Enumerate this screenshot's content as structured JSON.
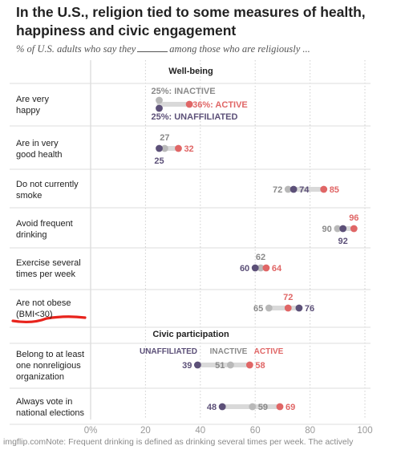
{
  "chart_data": {
    "type": "dot",
    "title": "In the U.S., religion tied to some measures of health, happiness and civic engagement",
    "subtitle_before": "% of U.S. adults who say they",
    "subtitle_after": "among those who are religiously ...",
    "xlim": [
      0,
      100
    ],
    "x_ticks": [
      {
        "value": 0,
        "label": "0%"
      },
      {
        "value": 20,
        "label": "20"
      },
      {
        "value": 40,
        "label": "40"
      },
      {
        "value": 60,
        "label": "60"
      },
      {
        "value": 80,
        "label": "80"
      },
      {
        "value": 100,
        "label": "100"
      }
    ],
    "series": [
      {
        "name": "UNAFFILIATED",
        "color": "#5c5078"
      },
      {
        "name": "INACTIVE",
        "color": "#b9b9b9"
      },
      {
        "name": "ACTIVE",
        "color": "#e06666"
      }
    ],
    "sections": [
      {
        "label": "Well-being",
        "rows": [
          {
            "label": "Are very happy",
            "values": [
              25,
              25,
              36
            ],
            "value_labels": [
              "25%: UNAFFILIATED",
              "25%: INACTIVE",
              "36%: ACTIVE"
            ]
          },
          {
            "label": "Are in very good health",
            "values": [
              25,
              27,
              32
            ],
            "value_labels": [
              "25",
              "27",
              "32"
            ]
          },
          {
            "label": "Do not currently smoke",
            "values": [
              74,
              72,
              85
            ],
            "value_labels": [
              "74",
              "72",
              "85"
            ]
          },
          {
            "label": "Avoid frequent drinking",
            "values": [
              92,
              90,
              96
            ],
            "value_labels": [
              "92",
              "90",
              "96"
            ]
          },
          {
            "label": "Exercise several times per week",
            "values": [
              60,
              62,
              64
            ],
            "value_labels": [
              "60",
              "62",
              "64"
            ]
          },
          {
            "label": "Are not obese (BMI<30)",
            "values": [
              76,
              65,
              72
            ],
            "value_labels": [
              "76",
              "65",
              "72"
            ]
          }
        ]
      },
      {
        "label": "Civic participation",
        "rows": [
          {
            "label": "Belong to at least one nonreligious organization",
            "values": [
              39,
              51,
              58
            ],
            "value_labels": [
              "39",
              "51",
              "58"
            ]
          },
          {
            "label": "Always vote in national elections",
            "values": [
              48,
              59,
              69
            ],
            "value_labels": [
              "48",
              "59",
              "69"
            ]
          }
        ]
      }
    ]
  },
  "footer": {
    "source": "imgflip.com",
    "note": "Note: Frequent drinking is defined as drinking several times per week. The actively"
  },
  "colors": {
    "annotation_underline": "#e8231c",
    "connector": "#d9d9d9",
    "gridline": "#cfcfcf"
  }
}
